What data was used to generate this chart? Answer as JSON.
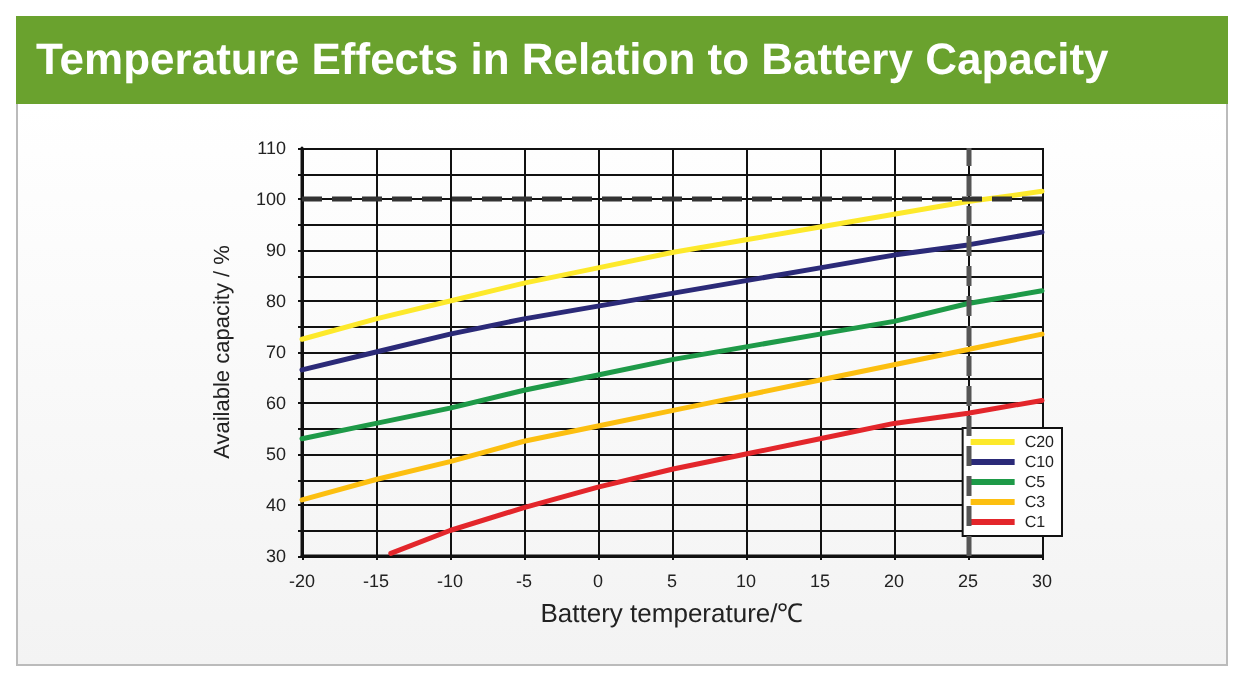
{
  "chart_data": {
    "type": "line",
    "title": "Temperature Effects in Relation to Battery Capacity",
    "xlabel": "Battery temperature/℃",
    "ylabel": "Available capacity / %",
    "x": [
      -20,
      -15,
      -10,
      -5,
      0,
      5,
      10,
      15,
      20,
      25,
      30
    ],
    "series": [
      {
        "name": "C20",
        "color": "#fde92b",
        "values": [
          72.5,
          76.5,
          80,
          83.5,
          86.5,
          89.5,
          92,
          94.5,
          97,
          99.5,
          101.5
        ]
      },
      {
        "name": "C10",
        "color": "#2b2a78",
        "values": [
          66.5,
          70,
          73.5,
          76.5,
          79,
          81.5,
          84,
          86.5,
          89,
          91,
          93.5
        ]
      },
      {
        "name": "C5",
        "color": "#1e9a48",
        "values": [
          53,
          56,
          59,
          62.5,
          65.5,
          68.5,
          71,
          73.5,
          76,
          79.5,
          82
        ]
      },
      {
        "name": "C3",
        "color": "#fcbf10",
        "values": [
          41,
          45,
          48.5,
          52.5,
          55.5,
          58.5,
          61.5,
          64.5,
          67.5,
          70.5,
          73.5
        ]
      },
      {
        "name": "C1",
        "color": "#e3262b",
        "x": [
          -14,
          -10,
          -5,
          0,
          5,
          10,
          15,
          20,
          25,
          30
        ],
        "values": [
          30.5,
          35,
          39.5,
          43.5,
          47,
          50,
          53,
          56,
          58,
          60.5
        ]
      }
    ],
    "xlim": [
      -20,
      30
    ],
    "xticks": [
      -20,
      -15,
      -10,
      -5,
      0,
      5,
      10,
      15,
      20,
      25,
      30
    ],
    "ylim": [
      30,
      110
    ],
    "yticks": [
      30,
      {
        "value": 35,
        "label": null
      },
      40,
      {
        "value": 45,
        "label": null
      },
      50,
      {
        "value": 55,
        "label": null
      },
      60,
      {
        "value": 65,
        "label": null
      },
      70,
      {
        "value": 75,
        "label": null
      },
      80,
      {
        "value": 85,
        "label": null
      },
      90,
      {
        "value": 95,
        "label": null
      },
      100,
      {
        "value": 105,
        "label": null
      },
      110
    ],
    "ref_lines": [
      {
        "axis": "y",
        "value": 100,
        "color": "#333333",
        "line_style": "dashed"
      },
      {
        "axis": "x",
        "value": 25,
        "color": "#555555",
        "line_style": "dashed"
      }
    ],
    "grid": true,
    "legend": "bottom right",
    "marker": "none",
    "line_style": "solid"
  }
}
